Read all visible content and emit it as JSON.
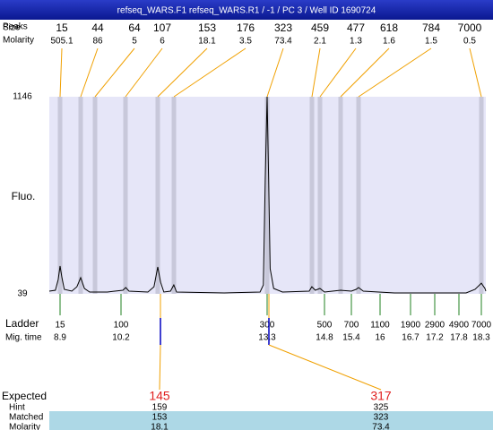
{
  "header": {
    "title": "refseq_WARS.F1  refseq_WARS.R1 / -1 / PC 3 / Well ID 1690724"
  },
  "chart_data": {
    "type": "line",
    "ylabel": "Fluo.",
    "ylim": [
      39,
      1146
    ],
    "yticks": [
      39,
      1146
    ],
    "color": "#000000",
    "x": [
      8.67,
      8.8,
      8.86,
      8.9,
      8.94,
      8.99,
      9.15,
      9.26,
      9.34,
      9.42,
      9.53,
      9.91,
      10.24,
      10.3,
      10.37,
      10.77,
      10.9,
      10.98,
      11.04,
      11.11,
      11.25,
      11.32,
      11.38,
      12.39,
      13.15,
      13.22,
      13.26,
      13.3,
      13.34,
      13.38,
      13.47,
      13.7,
      14.4,
      14.47,
      14.56,
      14.68,
      14.8,
      15.16,
      15.4,
      15.5,
      15.55,
      15.65,
      16.33,
      17.96,
      18.16,
      18.3,
      18.38,
      18.4
    ],
    "values": [
      54,
      59,
      119,
      195,
      130,
      64,
      54,
      79,
      130,
      69,
      49,
      49,
      59,
      74,
      54,
      49,
      79,
      190,
      104,
      49,
      54,
      89,
      49,
      44,
      49,
      89,
      683,
      1146,
      683,
      180,
      69,
      49,
      54,
      79,
      59,
      69,
      49,
      59,
      54,
      64,
      74,
      54,
      44,
      44,
      64,
      99,
      69,
      54
    ],
    "peaks": {
      "labels": [
        "Peaks",
        "Size",
        "Molarity"
      ],
      "size": [
        15,
        44,
        64,
        107,
        153,
        176,
        323,
        459,
        477,
        618,
        784,
        7000
      ],
      "molarity": [
        505.1,
        86,
        5,
        6,
        18.1,
        3.5,
        73.4,
        2.1,
        1.3,
        1.6,
        1.5,
        0.5
      ]
    },
    "ladder": {
      "labels": [
        "Ladder",
        "Mig. time"
      ],
      "size": [
        15,
        100,
        300,
        500,
        700,
        1100,
        1900,
        2900,
        4900,
        7000
      ],
      "time": [
        8.9,
        10.2,
        13.3,
        14.8,
        15.4,
        16,
        16.7,
        17.2,
        17.8,
        18.3
      ]
    }
  },
  "expected_table": {
    "labels": [
      "Expected",
      "Hint",
      "Matched",
      "Molarity"
    ],
    "columns": [
      {
        "expected": 145,
        "hint": 159,
        "matched": 153,
        "molarity": 18.1
      },
      {
        "expected": 317,
        "hint": 325,
        "matched": 323,
        "molarity": 73.4
      }
    ]
  }
}
